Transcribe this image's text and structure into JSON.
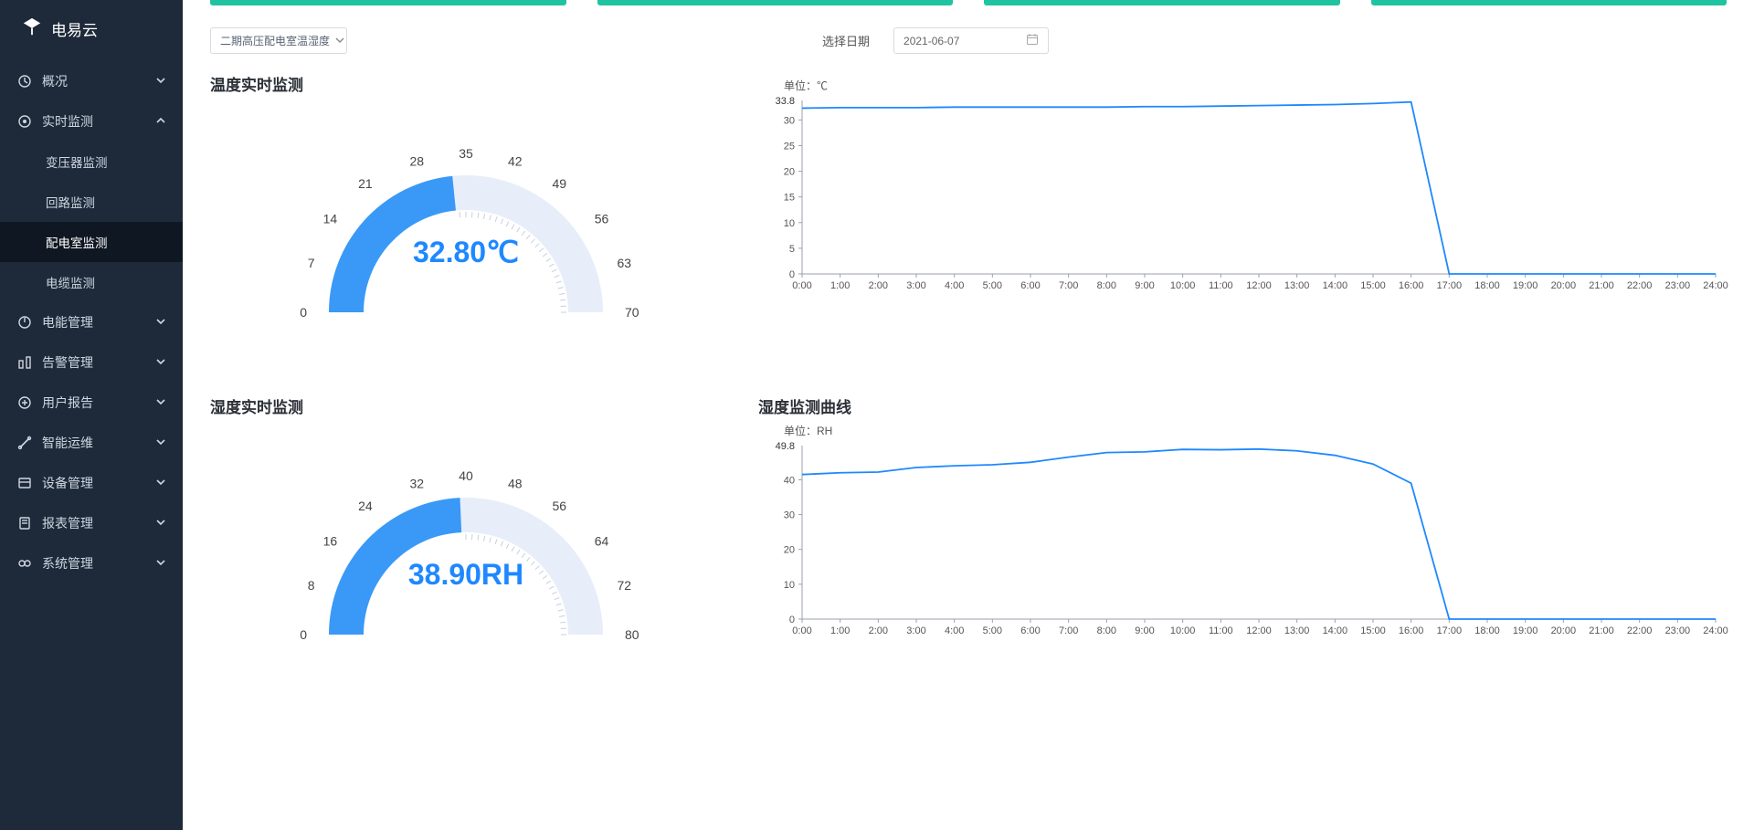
{
  "brand": {
    "name": "电易云"
  },
  "sidebar": {
    "items": [
      {
        "label": "概况",
        "icon": "overview",
        "expanded": false
      },
      {
        "label": "实时监测",
        "icon": "monitor",
        "expanded": true,
        "children": [
          {
            "label": "变压器监测",
            "active": false
          },
          {
            "label": "回路监测",
            "active": false
          },
          {
            "label": "配电室监测",
            "active": true
          },
          {
            "label": "电缆监测",
            "active": false
          }
        ]
      },
      {
        "label": "电能管理",
        "icon": "power",
        "expanded": false
      },
      {
        "label": "告警管理",
        "icon": "alarm",
        "expanded": false
      },
      {
        "label": "用户报告",
        "icon": "report",
        "expanded": false
      },
      {
        "label": "智能运维",
        "icon": "tools",
        "expanded": false
      },
      {
        "label": "设备管理",
        "icon": "device",
        "expanded": false
      },
      {
        "label": "报表管理",
        "icon": "sheet",
        "expanded": false
      },
      {
        "label": "系统管理",
        "icon": "system",
        "expanded": false
      }
    ]
  },
  "topbars_color": "#1fc3a0",
  "controls": {
    "room_select": {
      "value": "二期高压配电室温湿度"
    },
    "date_label": "选择日期",
    "date_value": "2021-06-07"
  },
  "temp_gauge": {
    "title": "温度实时监测",
    "min": 0,
    "max": 70,
    "value": 32.8,
    "display": "32.80℃",
    "tick_labels": [
      "0",
      "7",
      "14",
      "21",
      "28",
      "35",
      "42",
      "49",
      "56",
      "63",
      "70"
    ],
    "arc_color": "#3a99f6",
    "track_color": "#dbe7f5",
    "arc_bg": "#e7eef9"
  },
  "humid_gauge": {
    "title": "湿度实时监测",
    "min": 0,
    "max": 80,
    "value": 38.9,
    "display": "38.90RH",
    "tick_labels": [
      "0",
      "8",
      "16",
      "24",
      "32",
      "40",
      "48",
      "56",
      "64",
      "72",
      "80"
    ],
    "arc_color": "#3a99f6",
    "track_color": "#dbe7f5",
    "arc_bg": "#e7eef9"
  },
  "temp_chart": {
    "unit_label": "单位：℃",
    "ylim": [
      0,
      33.8
    ],
    "ymax_display": "33.8",
    "ytick_values": [
      0,
      5,
      10,
      15,
      20,
      25,
      30
    ],
    "xlabels": [
      "0:00",
      "1:00",
      "2:00",
      "3:00",
      "4:00",
      "5:00",
      "6:00",
      "7:00",
      "8:00",
      "9:00",
      "10:00",
      "11:00",
      "12:00",
      "13:00",
      "14:00",
      "15:00",
      "16:00",
      "17:00",
      "18:00",
      "19:00",
      "20:00",
      "21:00",
      "22:00",
      "23:00",
      "24:00"
    ],
    "line_color": "#1e88ff",
    "grid_color": "#eef1f4",
    "axis_color": "#9aa2ad",
    "series": [
      32.3,
      32.4,
      32.4,
      32.4,
      32.5,
      32.5,
      32.5,
      32.5,
      32.5,
      32.6,
      32.6,
      32.7,
      32.8,
      32.9,
      33.0,
      33.2,
      33.5,
      0,
      0,
      0,
      0,
      0,
      0,
      0,
      0
    ]
  },
  "humid_chart": {
    "title": "湿度监测曲线",
    "unit_label": "单位：RH",
    "ylim": [
      0,
      49.8
    ],
    "ymax_display": "49.8",
    "ytick_values": [
      0,
      10,
      20,
      30,
      40
    ],
    "xlabels": [
      "0:00",
      "1:00",
      "2:00",
      "3:00",
      "4:00",
      "5:00",
      "6:00",
      "7:00",
      "8:00",
      "9:00",
      "10:00",
      "11:00",
      "12:00",
      "13:00",
      "14:00",
      "15:00",
      "16:00",
      "17:00",
      "18:00",
      "19:00",
      "20:00",
      "21:00",
      "22:00",
      "23:00",
      "24:00"
    ],
    "line_color": "#1e88ff",
    "grid_color": "#eef1f4",
    "axis_color": "#9aa2ad",
    "series": [
      41.5,
      42.0,
      42.2,
      43.5,
      44.0,
      44.3,
      45.0,
      46.5,
      47.8,
      48.0,
      48.7,
      48.6,
      48.8,
      48.3,
      47.0,
      44.5,
      39.0,
      0,
      0,
      0,
      0,
      0,
      0,
      0,
      0
    ]
  }
}
